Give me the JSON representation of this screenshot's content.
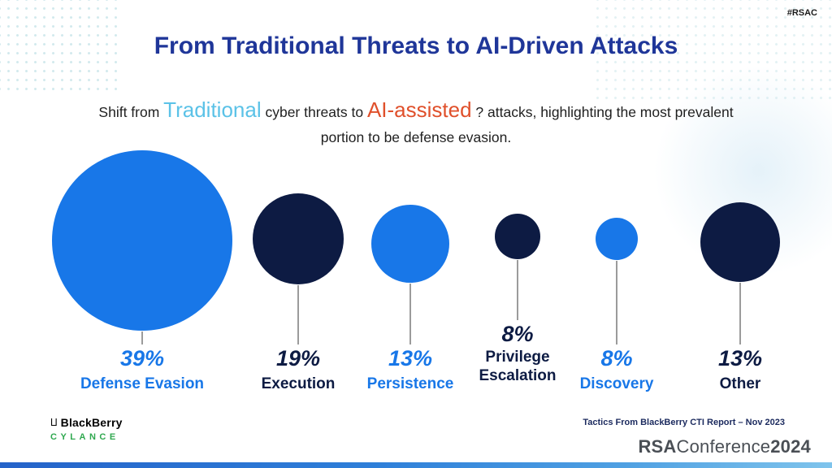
{
  "header": {
    "hashtag": "#RSAC",
    "title": "From Traditional Threats to AI-Driven Attacks"
  },
  "subtitle": {
    "lead": "Shift from ",
    "highlight_traditional": "Traditional",
    "mid": " cyber threats to ",
    "highlight_ai": "AI-assisted",
    "question_mark": " ?",
    "tail": " attacks, highlighting the most prevalent portion to be defense evasion."
  },
  "chart_data": {
    "type": "bubble",
    "title": "From Traditional Threats to AI-Driven Attacks",
    "categories": [
      "Defense Evasion",
      "Execution",
      "Persistence",
      "Privilege Escalation",
      "Discovery",
      "Other"
    ],
    "values": [
      39,
      19,
      13,
      8,
      8,
      13
    ],
    "value_labels": [
      "39%",
      "19%",
      "13%",
      "8%",
      "8%",
      "13%"
    ],
    "unit": "%",
    "colors": [
      "#1877E8",
      "#0D1B43",
      "#1877E8",
      "#0D1B43",
      "#1877E8",
      "#0D1B43"
    ],
    "legend": "none",
    "layout": "six bubbles in a row sized by value, connector stems to percentage and category labels below"
  },
  "footer": {
    "source": "Tactics From BlackBerry CTI Report – Nov 2023",
    "blackberry_wordmark": "BlackBerry",
    "cylance_wordmark": "CYLANCE",
    "rsa": "RSA",
    "conference": "Conference",
    "year": "2024"
  },
  "theme": {
    "title_color": "#1F3699",
    "body_text_color": "#1F1F1F",
    "traditional_color": "#5BC2E7",
    "ai_color": "#E0502B",
    "bubble_blue": "#1877E8",
    "bubble_navy": "#0D1B43",
    "stem_color": "#9B9B9B",
    "cylance_green": "#2FA84F"
  }
}
